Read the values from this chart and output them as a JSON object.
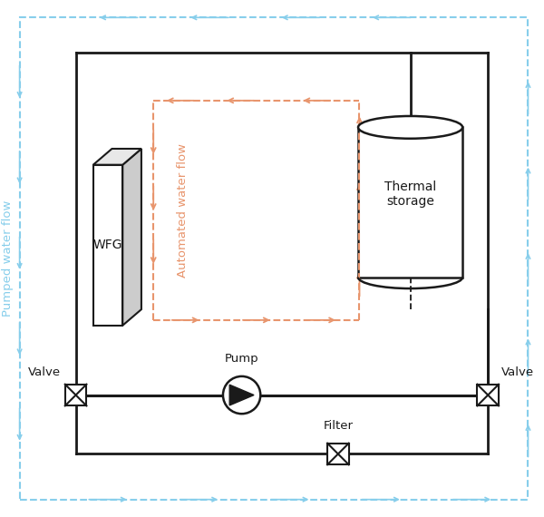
{
  "bg_color": "#ffffff",
  "outer_border_color": "#87CEEB",
  "inner_border_color": "#1a1a1a",
  "automated_flow_color": "#E8956D",
  "pumped_flow_color": "#87CEEB",
  "component_color": "#1a1a1a",
  "pumped_label": "Pumped water flow",
  "automated_label": "Automated water flow",
  "wfg_label": "WFG",
  "thermal_label": "Thermal\nstorage",
  "pump_label": "Pump",
  "filter_label": "Filter",
  "valve_label": "Valve",
  "figsize": [
    6.0,
    5.7
  ],
  "dpi": 100,
  "xlim": [
    0,
    10
  ],
  "ylim": [
    0,
    9.5
  ]
}
